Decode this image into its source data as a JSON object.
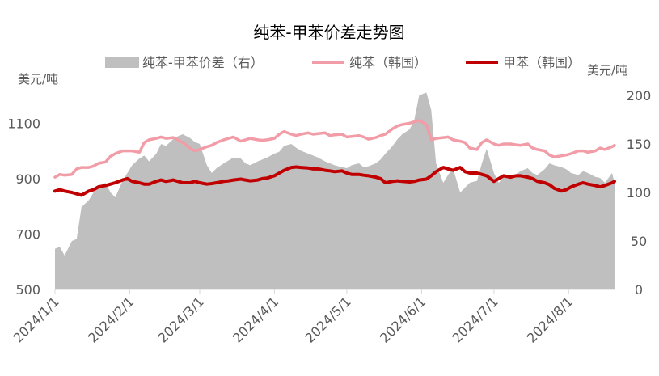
{
  "chart_data": {
    "type": "line",
    "title": "纯苯-甲苯价差走势图",
    "ylabel_left": "美元/吨",
    "ylabel_right": "美元/吨",
    "y_left_range": [
      500,
      1200
    ],
    "y_left_ticks": [
      "500",
      "700",
      "900",
      "1100"
    ],
    "y_right_range": [
      0,
      200
    ],
    "y_right_ticks": [
      "0",
      "50",
      "100",
      "150",
      "200"
    ],
    "x_range": [
      "2024-01-01",
      "2024-08-20"
    ],
    "x_tick_labels": [
      "2024/1/1",
      "2024/2/1",
      "2024/3/1",
      "2024/4/1",
      "2024/5/1",
      "2024/6/1",
      "2024/7/1",
      "2024/8/1"
    ],
    "x_tick_dates": [
      "2024-01-01",
      "2024-02-01",
      "2024-03-01",
      "2024-04-01",
      "2024-05-01",
      "2024-06-01",
      "2024-07-01",
      "2024-08-01"
    ],
    "grid": false,
    "legend": [
      "纯苯-甲苯价差（右）",
      "纯苯（韩国）",
      "甲苯（韩国）"
    ],
    "legend_position": "top",
    "series": [
      {
        "name": "纯苯-甲苯价差（右）",
        "type": "area",
        "axis": "right",
        "color": "#bfbfbf",
        "x": [
          "2024-01-01",
          "2024-01-03",
          "2024-01-05",
          "2024-01-08",
          "2024-01-10",
          "2024-01-12",
          "2024-01-15",
          "2024-01-17",
          "2024-01-19",
          "2024-01-22",
          "2024-01-24",
          "2024-01-26",
          "2024-01-29",
          "2024-01-31",
          "2024-02-02",
          "2024-02-05",
          "2024-02-07",
          "2024-02-09",
          "2024-02-12",
          "2024-02-14",
          "2024-02-16",
          "2024-02-19",
          "2024-02-21",
          "2024-02-23",
          "2024-02-26",
          "2024-02-28",
          "2024-03-01",
          "2024-03-04",
          "2024-03-06",
          "2024-03-08",
          "2024-03-11",
          "2024-03-13",
          "2024-03-15",
          "2024-03-18",
          "2024-03-20",
          "2024-03-22",
          "2024-03-25",
          "2024-03-27",
          "2024-03-29",
          "2024-04-01",
          "2024-04-03",
          "2024-04-05",
          "2024-04-08",
          "2024-04-10",
          "2024-04-12",
          "2024-04-15",
          "2024-04-17",
          "2024-04-19",
          "2024-04-22",
          "2024-04-24",
          "2024-04-26",
          "2024-04-29",
          "2024-05-01",
          "2024-05-03",
          "2024-05-06",
          "2024-05-08",
          "2024-05-10",
          "2024-05-13",
          "2024-05-15",
          "2024-05-17",
          "2024-05-20",
          "2024-05-22",
          "2024-05-24",
          "2024-05-27",
          "2024-05-29",
          "2024-05-31",
          "2024-06-03",
          "2024-06-05",
          "2024-06-07",
          "2024-06-10",
          "2024-06-12",
          "2024-06-14",
          "2024-06-17",
          "2024-06-19",
          "2024-06-21",
          "2024-06-24",
          "2024-06-26",
          "2024-06-28",
          "2024-07-01",
          "2024-07-03",
          "2024-07-05",
          "2024-07-08",
          "2024-07-10",
          "2024-07-12",
          "2024-07-15",
          "2024-07-17",
          "2024-07-19",
          "2024-07-22",
          "2024-07-24",
          "2024-07-26",
          "2024-07-29",
          "2024-07-31",
          "2024-08-02",
          "2024-08-05",
          "2024-08-07",
          "2024-08-09",
          "2024-08-12",
          "2024-08-14",
          "2024-08-16",
          "2024-08-19",
          "2024-08-20"
        ],
        "values": [
          42,
          44,
          35,
          50,
          52,
          85,
          92,
          100,
          105,
          110,
          100,
          95,
          112,
          120,
          128,
          135,
          138,
          132,
          140,
          150,
          148,
          155,
          158,
          160,
          156,
          152,
          150,
          128,
          120,
          125,
          130,
          133,
          136,
          135,
          130,
          128,
          132,
          134,
          136,
          140,
          142,
          148,
          150,
          146,
          143,
          140,
          138,
          136,
          132,
          130,
          128,
          126,
          125,
          128,
          130,
          126,
          127,
          130,
          134,
          140,
          148,
          155,
          160,
          165,
          175,
          200,
          203,
          185,
          130,
          110,
          118,
          125,
          100,
          105,
          110,
          112,
          130,
          145,
          120,
          110,
          116,
          115,
          118,
          122,
          125,
          120,
          118,
          124,
          130,
          128,
          126,
          124,
          120,
          118,
          122,
          120,
          116,
          115,
          110,
          120,
          110
        ]
      },
      {
        "name": "纯苯（韩国）",
        "type": "line",
        "axis": "left",
        "color": "#f19ca6",
        "x": [
          "2024-01-01",
          "2024-01-03",
          "2024-01-05",
          "2024-01-08",
          "2024-01-10",
          "2024-01-12",
          "2024-01-15",
          "2024-01-17",
          "2024-01-19",
          "2024-01-22",
          "2024-01-24",
          "2024-01-26",
          "2024-01-29",
          "2024-01-31",
          "2024-02-02",
          "2024-02-05",
          "2024-02-07",
          "2024-02-09",
          "2024-02-12",
          "2024-02-14",
          "2024-02-16",
          "2024-02-19",
          "2024-02-21",
          "2024-02-23",
          "2024-02-26",
          "2024-02-28",
          "2024-03-01",
          "2024-03-04",
          "2024-03-06",
          "2024-03-08",
          "2024-03-11",
          "2024-03-13",
          "2024-03-15",
          "2024-03-18",
          "2024-03-20",
          "2024-03-22",
          "2024-03-25",
          "2024-03-27",
          "2024-03-29",
          "2024-04-01",
          "2024-04-03",
          "2024-04-05",
          "2024-04-08",
          "2024-04-10",
          "2024-04-12",
          "2024-04-15",
          "2024-04-17",
          "2024-04-19",
          "2024-04-22",
          "2024-04-24",
          "2024-04-26",
          "2024-04-29",
          "2024-05-01",
          "2024-05-03",
          "2024-05-06",
          "2024-05-08",
          "2024-05-10",
          "2024-05-13",
          "2024-05-15",
          "2024-05-17",
          "2024-05-20",
          "2024-05-22",
          "2024-05-24",
          "2024-05-27",
          "2024-05-29",
          "2024-05-31",
          "2024-06-03",
          "2024-06-05",
          "2024-06-07",
          "2024-06-10",
          "2024-06-12",
          "2024-06-14",
          "2024-06-17",
          "2024-06-19",
          "2024-06-21",
          "2024-06-24",
          "2024-06-26",
          "2024-06-28",
          "2024-07-01",
          "2024-07-03",
          "2024-07-05",
          "2024-07-08",
          "2024-07-10",
          "2024-07-12",
          "2024-07-15",
          "2024-07-17",
          "2024-07-19",
          "2024-07-22",
          "2024-07-24",
          "2024-07-26",
          "2024-07-29",
          "2024-07-31",
          "2024-08-02",
          "2024-08-05",
          "2024-08-07",
          "2024-08-09",
          "2024-08-12",
          "2024-08-14",
          "2024-08-16",
          "2024-08-19",
          "2024-08-20"
        ],
        "values": [
          905,
          915,
          912,
          915,
          935,
          940,
          940,
          945,
          955,
          960,
          980,
          990,
          1000,
          1000,
          1000,
          995,
          1030,
          1040,
          1045,
          1050,
          1045,
          1048,
          1040,
          1030,
          1010,
          1000,
          1005,
          1015,
          1020,
          1030,
          1040,
          1045,
          1050,
          1035,
          1040,
          1045,
          1040,
          1038,
          1040,
          1045,
          1060,
          1070,
          1060,
          1055,
          1060,
          1065,
          1060,
          1062,
          1065,
          1055,
          1058,
          1060,
          1050,
          1052,
          1055,
          1050,
          1042,
          1048,
          1055,
          1060,
          1080,
          1090,
          1095,
          1100,
          1105,
          1110,
          1095,
          1040,
          1045,
          1048,
          1050,
          1040,
          1035,
          1030,
          1010,
          1005,
          1030,
          1040,
          1025,
          1020,
          1025,
          1025,
          1022,
          1020,
          1025,
          1010,
          1005,
          1000,
          985,
          978,
          982,
          985,
          990,
          1000,
          1000,
          995,
          1000,
          1010,
          1005,
          1015,
          1020
        ]
      },
      {
        "name": "甲苯（韩国）",
        "type": "line",
        "axis": "left",
        "color": "#c00000",
        "x": [
          "2024-01-01",
          "2024-01-03",
          "2024-01-05",
          "2024-01-08",
          "2024-01-10",
          "2024-01-12",
          "2024-01-15",
          "2024-01-17",
          "2024-01-19",
          "2024-01-22",
          "2024-01-24",
          "2024-01-26",
          "2024-01-29",
          "2024-01-31",
          "2024-02-02",
          "2024-02-05",
          "2024-02-07",
          "2024-02-09",
          "2024-02-12",
          "2024-02-14",
          "2024-02-16",
          "2024-02-19",
          "2024-02-21",
          "2024-02-23",
          "2024-02-26",
          "2024-02-28",
          "2024-03-01",
          "2024-03-04",
          "2024-03-06",
          "2024-03-08",
          "2024-03-11",
          "2024-03-13",
          "2024-03-15",
          "2024-03-18",
          "2024-03-20",
          "2024-03-22",
          "2024-03-25",
          "2024-03-27",
          "2024-03-29",
          "2024-04-01",
          "2024-04-03",
          "2024-04-05",
          "2024-04-08",
          "2024-04-10",
          "2024-04-12",
          "2024-04-15",
          "2024-04-17",
          "2024-04-19",
          "2024-04-22",
          "2024-04-24",
          "2024-04-26",
          "2024-04-29",
          "2024-05-01",
          "2024-05-03",
          "2024-05-06",
          "2024-05-08",
          "2024-05-10",
          "2024-05-13",
          "2024-05-15",
          "2024-05-17",
          "2024-05-20",
          "2024-05-22",
          "2024-05-24",
          "2024-05-27",
          "2024-05-29",
          "2024-05-31",
          "2024-06-03",
          "2024-06-05",
          "2024-06-07",
          "2024-06-10",
          "2024-06-12",
          "2024-06-14",
          "2024-06-17",
          "2024-06-19",
          "2024-06-21",
          "2024-06-24",
          "2024-06-26",
          "2024-06-28",
          "2024-07-01",
          "2024-07-03",
          "2024-07-05",
          "2024-07-08",
          "2024-07-10",
          "2024-07-12",
          "2024-07-15",
          "2024-07-17",
          "2024-07-19",
          "2024-07-22",
          "2024-07-24",
          "2024-07-26",
          "2024-07-29",
          "2024-07-31",
          "2024-08-02",
          "2024-08-05",
          "2024-08-07",
          "2024-08-09",
          "2024-08-12",
          "2024-08-14",
          "2024-08-16",
          "2024-08-19",
          "2024-08-20"
        ],
        "values": [
          855,
          860,
          855,
          850,
          845,
          840,
          855,
          860,
          870,
          875,
          880,
          885,
          895,
          900,
          890,
          885,
          880,
          880,
          890,
          895,
          890,
          895,
          890,
          885,
          885,
          890,
          885,
          880,
          882,
          885,
          890,
          892,
          895,
          898,
          895,
          892,
          895,
          900,
          902,
          910,
          920,
          930,
          940,
          942,
          940,
          938,
          935,
          935,
          930,
          928,
          925,
          928,
          920,
          915,
          915,
          912,
          910,
          905,
          900,
          885,
          890,
          892,
          890,
          888,
          890,
          895,
          898,
          910,
          925,
          940,
          935,
          930,
          940,
          925,
          920,
          920,
          915,
          910,
          890,
          900,
          910,
          905,
          910,
          910,
          905,
          900,
          890,
          885,
          878,
          865,
          855,
          860,
          870,
          880,
          885,
          880,
          875,
          870,
          875,
          885,
          890
        ]
      }
    ]
  }
}
